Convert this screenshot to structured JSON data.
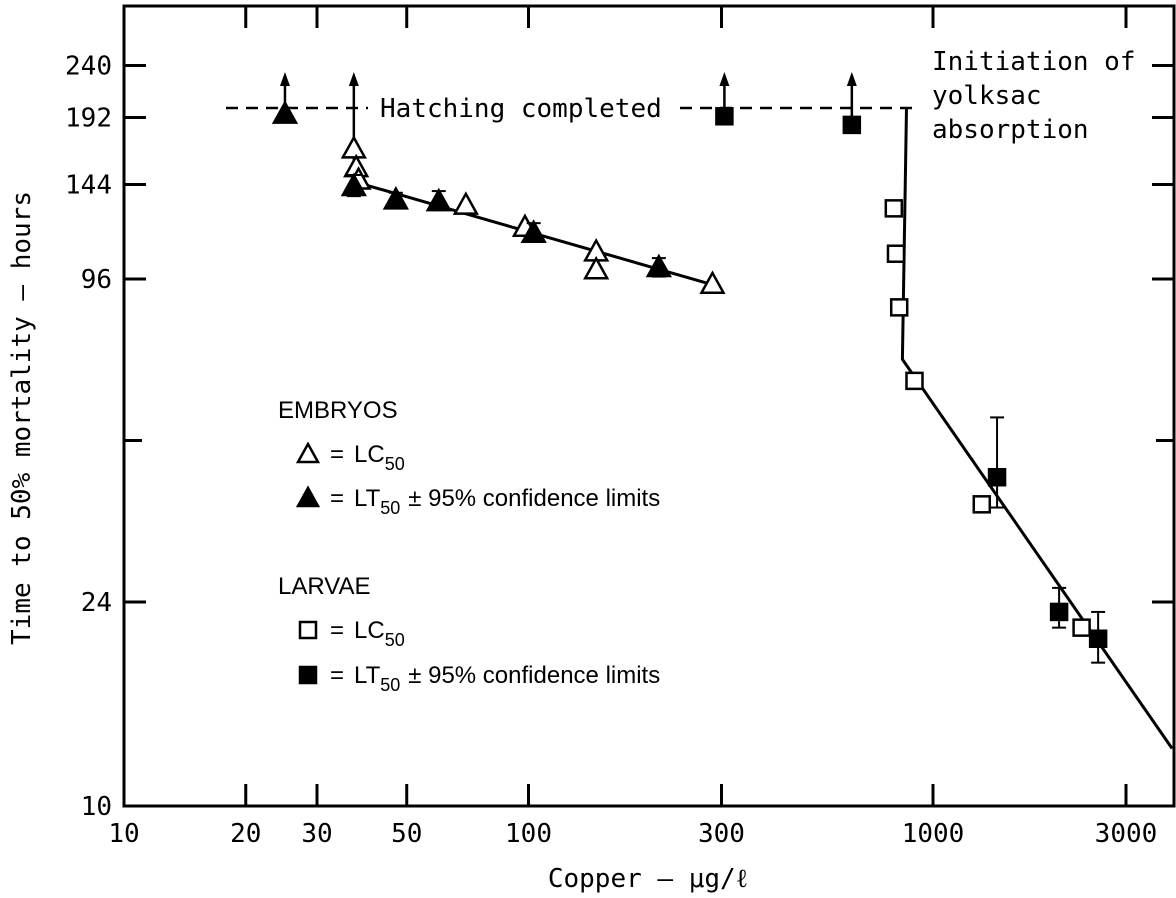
{
  "chart_data": {
    "type": "scatter",
    "title": "",
    "xlabel": "Copper — μg/ℓ",
    "ylabel": "Time to 50% mortality — hours",
    "x_scale": "log",
    "y_scale": "log",
    "xlim": [
      10,
      3900
    ],
    "ylim": [
      10,
      300
    ],
    "x_ticks": [
      {
        "value": 10,
        "label": "10"
      },
      {
        "value": 20,
        "label": "20"
      },
      {
        "value": 30,
        "label": "30"
      },
      {
        "value": 50,
        "label": "50"
      },
      {
        "value": 100,
        "label": "100"
      },
      {
        "value": 300,
        "label": "300"
      },
      {
        "value": 1000,
        "label": "1000"
      },
      {
        "value": 3000,
        "label": "3000"
      }
    ],
    "y_ticks": [
      {
        "value": 240,
        "label": "240"
      },
      {
        "value": 192,
        "label": "192"
      },
      {
        "value": 144,
        "label": "144"
      },
      {
        "value": 96,
        "label": "96"
      },
      {
        "value": 24,
        "label": "24"
      },
      {
        "value": 10,
        "label": "10"
      }
    ],
    "grid": false,
    "annotations": {
      "hatching": "Hatching completed",
      "yolksac_line1": "Initiation of",
      "yolksac_line2": "yolksac",
      "yolksac_line3": "absorption"
    },
    "hatching_hours": 200,
    "legend": {
      "embryos_title": "EMBRYOS",
      "eq": "=",
      "lc": "LC",
      "lt": "LT",
      "sub": "50",
      "conf": "± 95% confidence limits",
      "larvae_title": "LARVAE"
    },
    "series": [
      {
        "name": "EMBRYOS LC50",
        "marker": "open-triangle",
        "points": [
          {
            "x": 37,
            "y": 168
          },
          {
            "x": 37.5,
            "y": 155
          },
          {
            "x": 38,
            "y": 147
          },
          {
            "x": 70,
            "y": 132
          },
          {
            "x": 98,
            "y": 120
          },
          {
            "x": 147,
            "y": 108
          },
          {
            "x": 147,
            "y": 100
          },
          {
            "x": 285,
            "y": 94
          }
        ]
      },
      {
        "name": "EMBRYOS LT50 ± 95% confidence limits",
        "marker": "filled-triangle",
        "points": [
          {
            "x": 25,
            "y": 195,
            "arrow": true
          },
          {
            "x": 37,
            "y": 143,
            "lo": 137,
            "hi": 150
          },
          {
            "x": 47,
            "y": 135,
            "lo": 132,
            "hi": 139
          },
          {
            "x": 60,
            "y": 134,
            "lo": 129,
            "hi": 140
          },
          {
            "x": 103,
            "y": 117,
            "lo": 113,
            "hi": 122
          },
          {
            "x": 210,
            "y": 101,
            "lo": 97,
            "hi": 105
          }
        ]
      },
      {
        "name": "LARVAE LC50",
        "marker": "open-square",
        "points": [
          {
            "x": 800,
            "y": 130
          },
          {
            "x": 810,
            "y": 107
          },
          {
            "x": 825,
            "y": 85
          },
          {
            "x": 900,
            "y": 62
          },
          {
            "x": 1320,
            "y": 36.5
          },
          {
            "x": 2330,
            "y": 21.5
          }
        ]
      },
      {
        "name": "LARVAE LT50 ± 95% confidence limits",
        "marker": "filled-square",
        "points": [
          {
            "x": 305,
            "y": 193,
            "arrow": true
          },
          {
            "x": 630,
            "y": 186,
            "arrow": true
          },
          {
            "x": 1440,
            "y": 41,
            "lo": 36,
            "hi": 53
          },
          {
            "x": 2050,
            "y": 23,
            "lo": 21.5,
            "hi": 25.5
          },
          {
            "x": 2560,
            "y": 20.5,
            "lo": 18.5,
            "hi": 23
          }
        ]
      }
    ],
    "fit_lines": [
      {
        "name": "embryos-fit",
        "points": [
          [
            38,
            145
          ],
          [
            295,
            93
          ]
        ]
      },
      {
        "name": "larvae-fit",
        "points": [
          [
            860,
            200
          ],
          [
            840,
            68
          ],
          [
            3900,
            12.8
          ]
        ]
      }
    ]
  }
}
